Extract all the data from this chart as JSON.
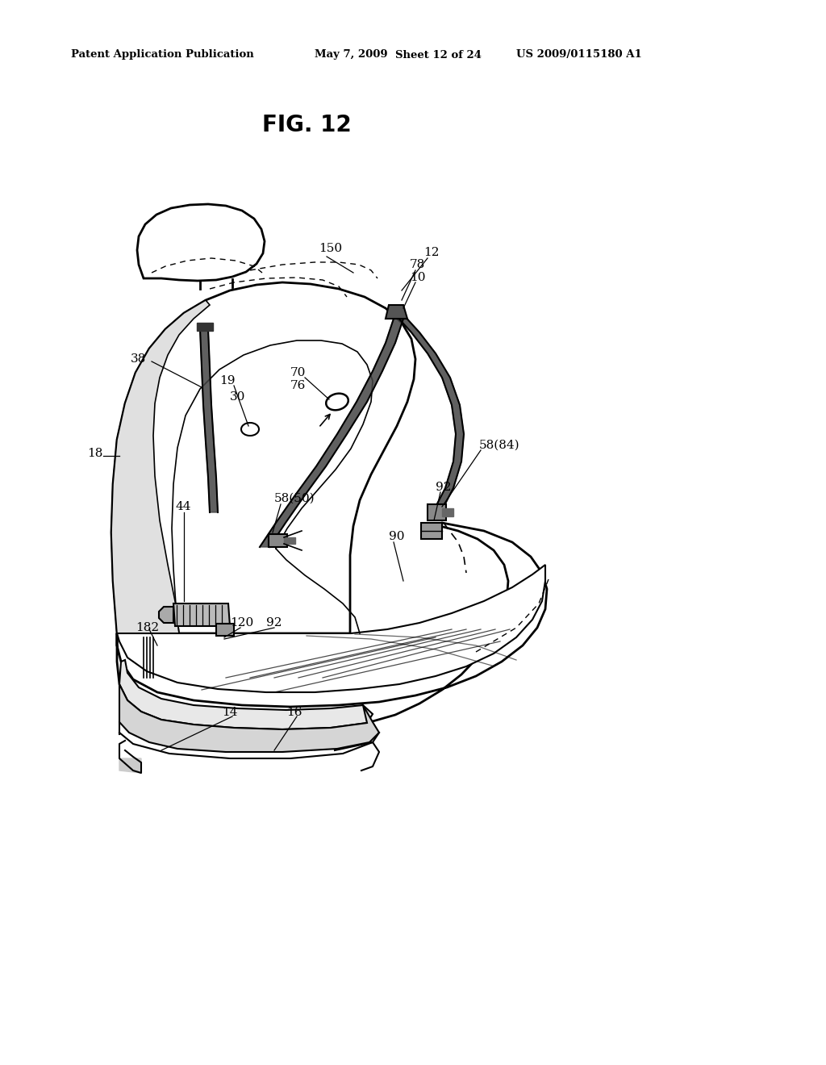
{
  "title": "FIG. 12",
  "header_left": "Patent Application Publication",
  "header_mid": "May 7, 2009   Sheet 12 of 24",
  "header_right": "US 2009/0115180 A1",
  "bg_color": "#ffffff",
  "line_color": "#000000",
  "fig_width": 10.24,
  "fig_height": 13.2,
  "dpi": 100
}
